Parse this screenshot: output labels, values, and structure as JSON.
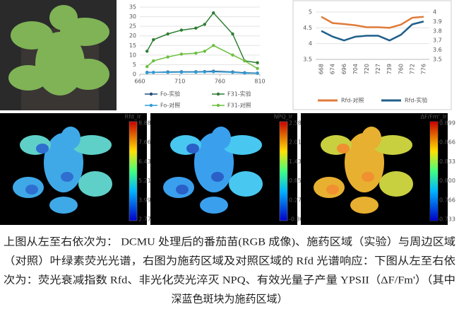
{
  "chart_data": [
    {
      "type": "line",
      "x": [
        669,
        677,
        695,
        712,
        730,
        741,
        752,
        776,
        791,
        807
      ],
      "xlim": [
        660,
        810
      ],
      "xticks": [
        660,
        710,
        760,
        810
      ],
      "ylim": [
        0,
        35
      ],
      "yticks": [
        0,
        5,
        10,
        15,
        20,
        25,
        30,
        35
      ],
      "grid": true,
      "legend": "bottom",
      "series": [
        {
          "name": "Fo-实验",
          "color": "#1f4e79",
          "values": [
            1,
            1,
            1.2,
            1.3,
            1.3,
            1.4,
            1.6,
            1.2,
            0.8,
            0.6
          ]
        },
        {
          "name": "F31-实验",
          "color": "#2e7d32",
          "values": [
            12,
            18,
            21,
            23,
            24,
            26,
            32,
            21,
            7,
            6
          ]
        },
        {
          "name": "Fo-对照",
          "color": "#2e9bd6",
          "values": [
            0.8,
            1,
            1,
            1.1,
            1.1,
            1.2,
            1.3,
            1,
            0.6,
            0.5
          ]
        },
        {
          "name": "F31-对照",
          "color": "#6cbf3f",
          "values": [
            4,
            7,
            9,
            10.5,
            11,
            12,
            15,
            10,
            7,
            3
          ]
        }
      ]
    },
    {
      "type": "line",
      "categories": [
        "668",
        "674",
        "696",
        "704",
        "720",
        "727",
        "739",
        "760",
        "772",
        "776"
      ],
      "ylim": [
        3.5,
        5
      ],
      "yticks": [
        3.5,
        4,
        4.5,
        5
      ],
      "y2lim": [
        3.5,
        4
      ],
      "y2ticks": [
        3.5,
        3.6,
        3.7,
        3.8,
        3.9,
        4
      ],
      "grid": true,
      "legend": "bottom",
      "series": [
        {
          "name": "Rfd-对照",
          "color": "#e07b39",
          "values": [
            4.85,
            4.65,
            4.62,
            4.58,
            4.52,
            4.52,
            4.5,
            4.6,
            4.82,
            4.85
          ]
        },
        {
          "name": "Rfd-实验",
          "color": "#1f5f8b",
          "axis": "y2",
          "values": [
            3.8,
            3.74,
            3.7,
            3.74,
            3.75,
            3.75,
            3.7,
            3.76,
            3.87,
            3.9
          ]
        }
      ]
    }
  ],
  "colorbars": [
    {
      "title": "Rfd_lr",
      "ticks": [
        "8.884",
        "7.662",
        "6.439",
        "5.216",
        "3.993",
        "2.770"
      ]
    },
    {
      "title": "NPQ_lr",
      "ticks": [
        "2.589",
        "2.010",
        "1.432",
        "0.854",
        "0.276",
        "-0.303"
      ]
    },
    {
      "title": "ΔF/Fm'_lr",
      "ticks": [
        "0.899",
        "0.866",
        "0.833",
        "0.800",
        "0.766",
        "0.733"
      ]
    }
  ],
  "caption": [
    "上图从左至右依次为： DCMU 处理后的番茄苗(RGB 成像)、施药区域（实验）与周边区域",
    "（对照）叶绿素荧光光谱，右图为施药区域及对照区域的 Rfd 光谱响应：下图从左至右依",
    "次为：荧光衰减指数 Rfd、非光化荧光淬灭 NPQ、有效光量子产量 YPSII（ΔF/Fm'）（其中",
    "深蓝色斑块为施药区域）"
  ]
}
